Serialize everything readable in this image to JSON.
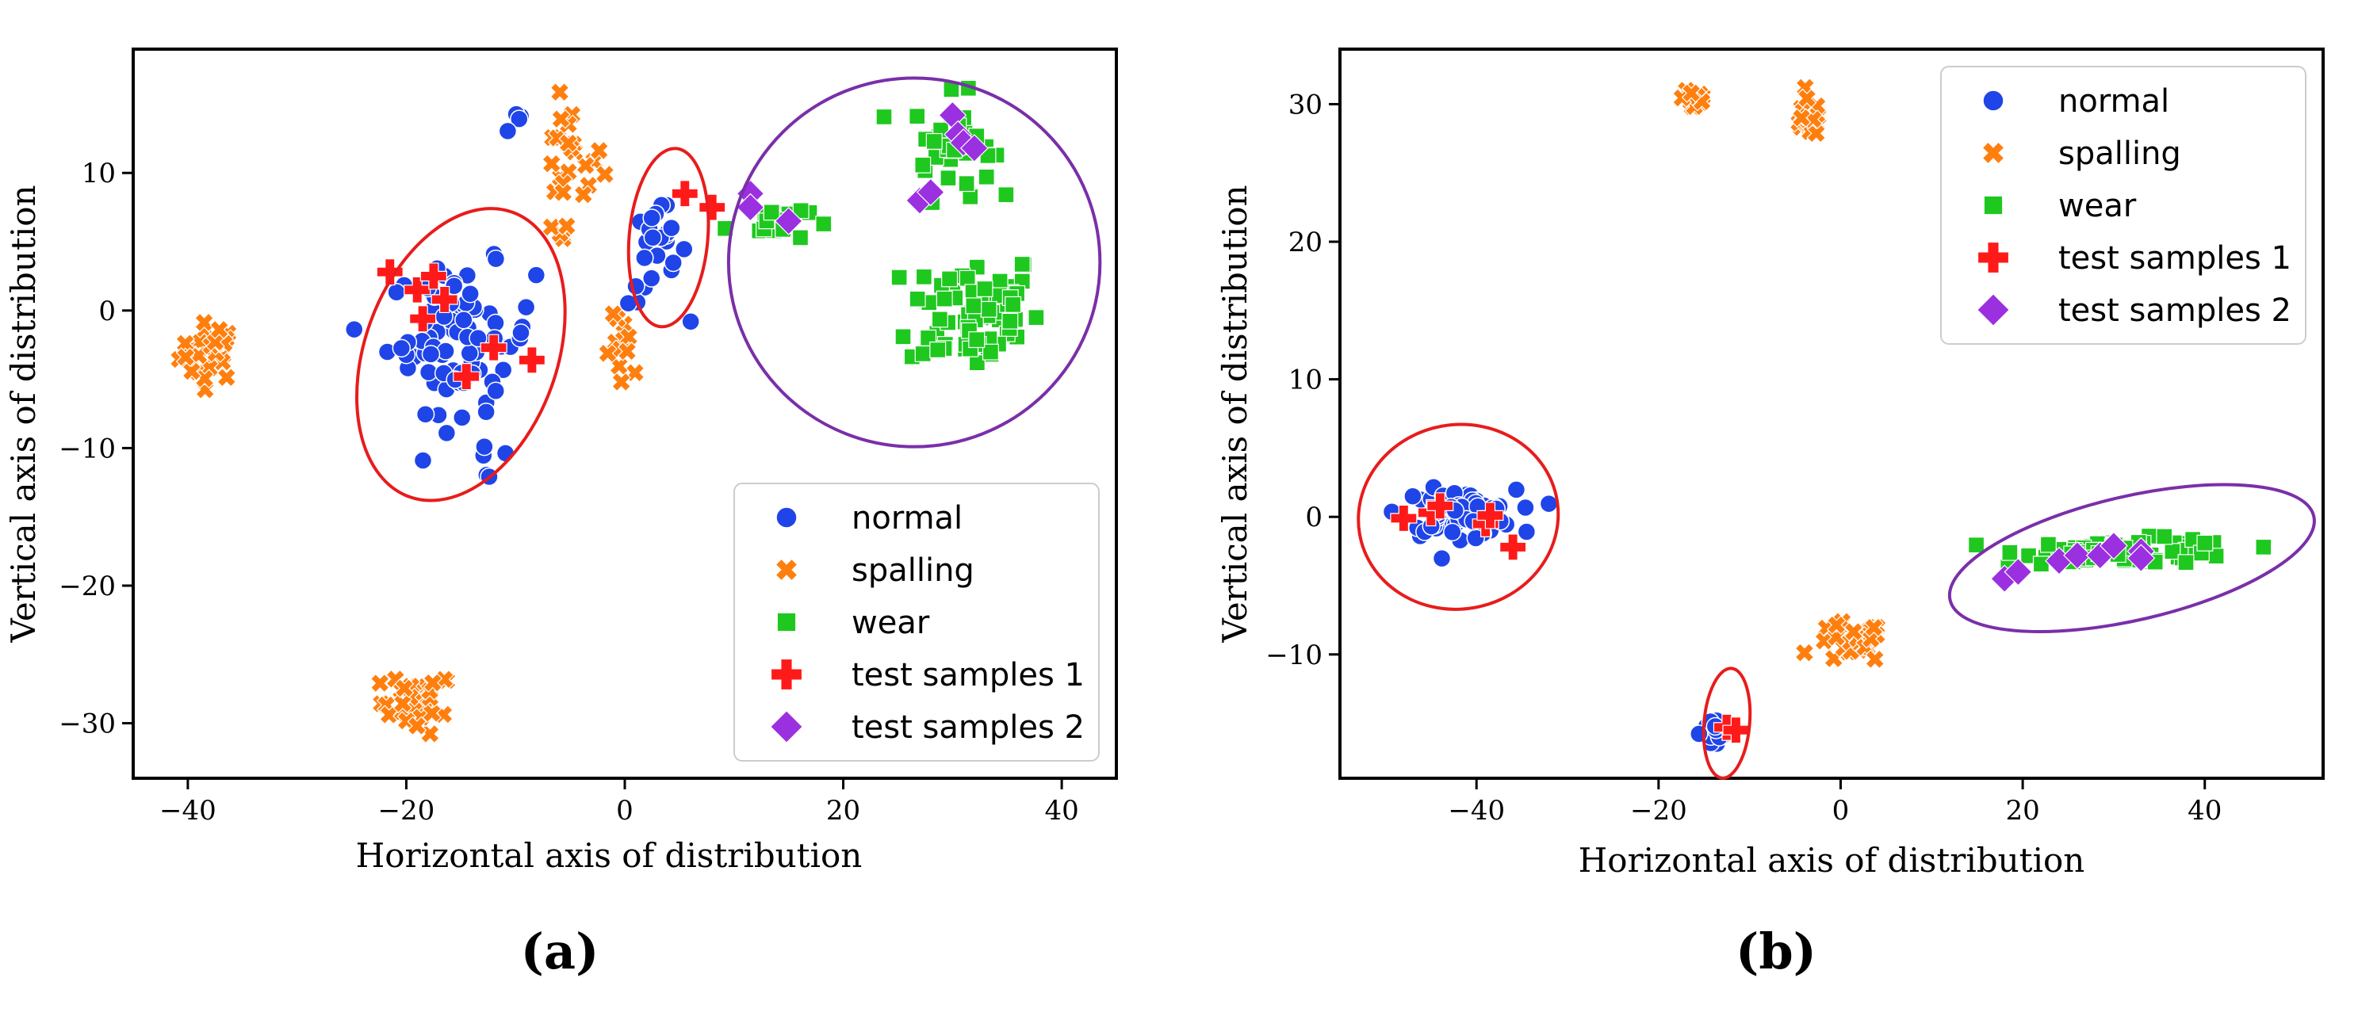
{
  "colors": {
    "normal": "#1f45e8",
    "spalling": "#ff7f0e",
    "wear": "#1fc81f",
    "test1": "#ff1a1a",
    "test2": "#9b30e0",
    "ellipse_red": "#e81c1c",
    "ellipse_purple": "#7a2fa8"
  },
  "chart_data": [
    {
      "type": "scatter",
      "panel": "a",
      "caption": "(a)",
      "xlabel": "Horizontal axis of distribution",
      "ylabel": "Vertical axis of distribution",
      "xlim": [
        -45,
        45
      ],
      "ylim": [
        -34,
        19
      ],
      "xticks": [
        -40,
        -20,
        0,
        20,
        40
      ],
      "xtick_labels": [
        "−40",
        "−20",
        "0",
        "20",
        "40"
      ],
      "yticks": [
        10,
        0,
        -10,
        -20,
        -30
      ],
      "ytick_labels": [
        "10",
        "0",
        "−10",
        "−20",
        "−30"
      ],
      "legend": {
        "position": "lower-right",
        "entries": [
          "normal",
          "spalling",
          "wear",
          "test samples 1",
          "test samples 2"
        ]
      },
      "clusters": {
        "normal": [
          {
            "cx": -15,
            "cy": -2,
            "sx": 4.5,
            "sy": 3.5,
            "n": 80
          },
          {
            "cx": -13,
            "cy": -10,
            "sx": 1.5,
            "sy": 1.5,
            "n": 6
          },
          {
            "cx": 3,
            "cy": 4,
            "sx": 1.8,
            "sy": 2.5,
            "n": 24
          },
          {
            "cx": -10,
            "cy": 13.5,
            "sx": 0.6,
            "sy": 1,
            "n": 4
          }
        ],
        "spalling": [
          {
            "cx": -38,
            "cy": -3,
            "sx": 1.8,
            "sy": 1.4,
            "n": 32
          },
          {
            "cx": -19,
            "cy": -28.5,
            "sx": 2.2,
            "sy": 1.5,
            "n": 30
          },
          {
            "cx": -5,
            "cy": 11,
            "sx": 2,
            "sy": 2.6,
            "n": 22
          },
          {
            "cx": -7,
            "cy": 5.5,
            "sx": 1.5,
            "sy": 1,
            "n": 5
          },
          {
            "cx": 0,
            "cy": -3.5,
            "sx": 1.2,
            "sy": 2,
            "n": 12
          }
        ],
        "wear": [
          {
            "cx": 32,
            "cy": 0,
            "sx": 4,
            "sy": 3,
            "n": 70
          },
          {
            "cx": 30,
            "cy": 12,
            "sx": 2.4,
            "sy": 2.4,
            "n": 40
          },
          {
            "cx": 13,
            "cy": 6.5,
            "sx": 2.5,
            "sy": 1,
            "n": 15
          }
        ]
      },
      "test_samples_1": [
        [
          -21.5,
          2.8
        ],
        [
          -19,
          1.5
        ],
        [
          -17.5,
          2.5
        ],
        [
          -16.5,
          0.8
        ],
        [
          -18.5,
          -0.6
        ],
        [
          -14.5,
          -4.8
        ],
        [
          -12,
          -2.7
        ],
        [
          -8.5,
          -3.6
        ],
        [
          5.5,
          8.5
        ],
        [
          8,
          7.5
        ]
      ],
      "test_samples_2": [
        [
          11.5,
          8.5
        ],
        [
          11.5,
          7.5
        ],
        [
          15,
          6.5
        ],
        [
          30,
          14.2
        ],
        [
          30.5,
          12.8
        ],
        [
          31,
          12.2
        ],
        [
          32,
          11.8
        ],
        [
          27,
          8
        ],
        [
          28,
          8.6
        ]
      ],
      "ellipses": [
        {
          "color": "red",
          "cx": -15,
          "cy": -3.2,
          "rx": 8.8,
          "ry": 11,
          "angle": 20
        },
        {
          "color": "red",
          "cx": 4,
          "cy": 5.3,
          "rx": 3.6,
          "ry": 6.5,
          "angle": 5
        },
        {
          "color": "purple",
          "cx": 26.5,
          "cy": 3.5,
          "rx": 17,
          "ry": 13.4,
          "angle": 0
        }
      ]
    },
    {
      "type": "scatter",
      "panel": "b",
      "caption": "(b)",
      "xlabel": "Horizontal axis of distribution",
      "ylabel": "Vertical axis of distribution",
      "xlim": [
        -55,
        53
      ],
      "ylim": [
        -19,
        34
      ],
      "xticks": [
        -40,
        -20,
        0,
        20,
        40
      ],
      "xtick_labels": [
        "−40",
        "−20",
        "0",
        "20",
        "40"
      ],
      "yticks": [
        30,
        20,
        10,
        0,
        -10
      ],
      "ytick_labels": [
        "30",
        "20",
        "10",
        "0",
        "−10"
      ],
      "legend": {
        "position": "top-right",
        "entries": [
          "normal",
          "spalling",
          "wear",
          "test samples 1",
          "test samples 2"
        ]
      },
      "clusters": {
        "normal": [
          {
            "cx": -42,
            "cy": 0.3,
            "sx": 4.2,
            "sy": 1.1,
            "n": 75
          },
          {
            "cx": -14,
            "cy": -15.8,
            "sx": 1,
            "sy": 0.8,
            "n": 18
          }
        ],
        "spalling": [
          {
            "cx": -16,
            "cy": 30.5,
            "sx": 0.9,
            "sy": 0.8,
            "n": 22
          },
          {
            "cx": -3.5,
            "cy": 29,
            "sx": 1.2,
            "sy": 0.9,
            "n": 22
          },
          {
            "cx": 1,
            "cy": -9.2,
            "sx": 2.5,
            "sy": 1,
            "n": 35
          }
        ],
        "wear": [
          {
            "cx": 32,
            "cy": -2.5,
            "sx": 8,
            "sy": 0.6,
            "n": 80
          }
        ]
      },
      "test_samples_1": [
        [
          -48,
          -0.1
        ],
        [
          -45,
          0.3
        ],
        [
          -44,
          0.8
        ],
        [
          -39,
          -0.5
        ],
        [
          -38.5,
          0.1
        ],
        [
          -36,
          -2.2
        ],
        [
          -12.5,
          -15.3
        ],
        [
          -11.5,
          -15.5
        ]
      ],
      "test_samples_2": [
        [
          18,
          -4.5
        ],
        [
          19.5,
          -4
        ],
        [
          24,
          -3.2
        ],
        [
          26,
          -2.8
        ],
        [
          28.5,
          -2.8
        ],
        [
          30,
          -2.1
        ],
        [
          33,
          -2.5
        ],
        [
          33,
          -3
        ]
      ],
      "ellipses": [
        {
          "color": "red",
          "cx": -42,
          "cy": 0,
          "rx": 11,
          "ry": 6.7,
          "angle": -10
        },
        {
          "color": "red",
          "cx": -12.5,
          "cy": -15,
          "rx": 2.5,
          "ry": 4,
          "angle": 5
        },
        {
          "color": "purple",
          "cx": 32,
          "cy": -3,
          "rx": 20.5,
          "ry": 4.5,
          "angle": -13
        }
      ]
    }
  ]
}
